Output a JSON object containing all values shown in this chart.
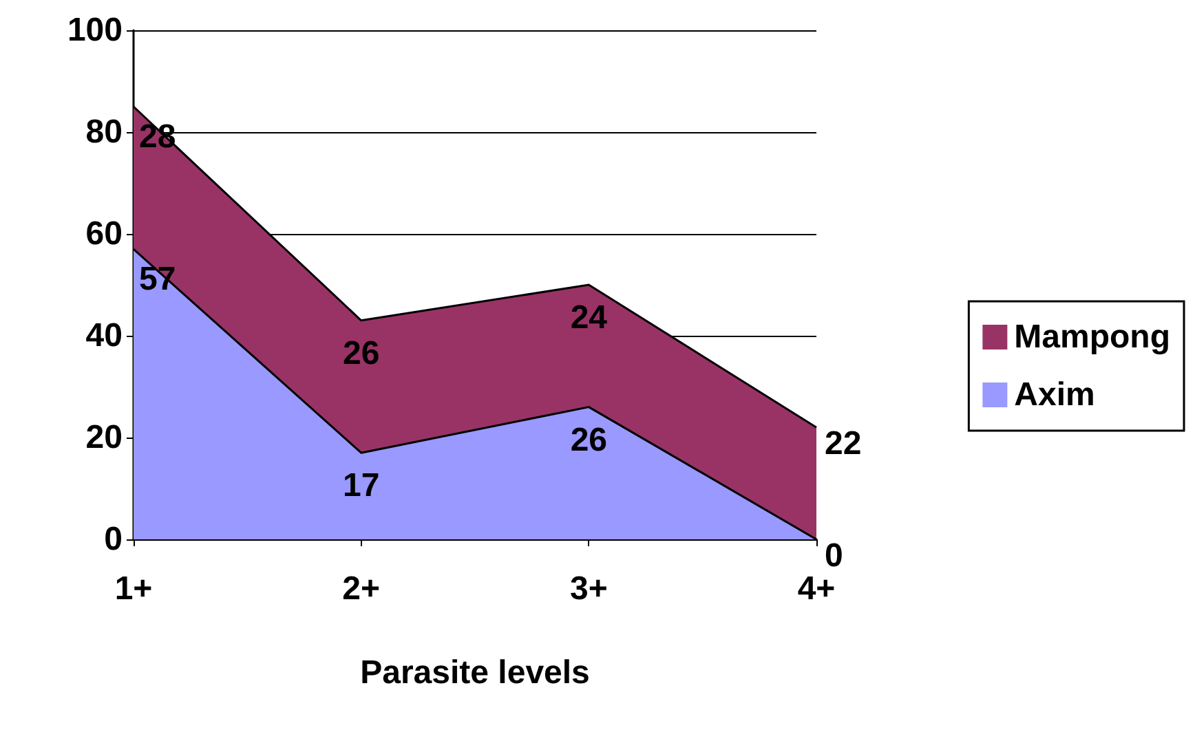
{
  "chart_data": {
    "type": "area",
    "stacked": true,
    "xlabel": "Parasite levels",
    "categories": [
      "1+",
      "2+",
      "3+",
      "4+"
    ],
    "series": [
      {
        "name": "Axim",
        "color": "#9999ff",
        "values": [
          57,
          17,
          26,
          0
        ]
      },
      {
        "name": "Mampong",
        "color": "#993366",
        "values": [
          28,
          26,
          24,
          22
        ]
      }
    ],
    "ylim": [
      0,
      100
    ],
    "yticks": [
      0,
      20,
      40,
      60,
      80,
      100
    ],
    "grid": "y",
    "legend": "right",
    "data_labels": true
  }
}
